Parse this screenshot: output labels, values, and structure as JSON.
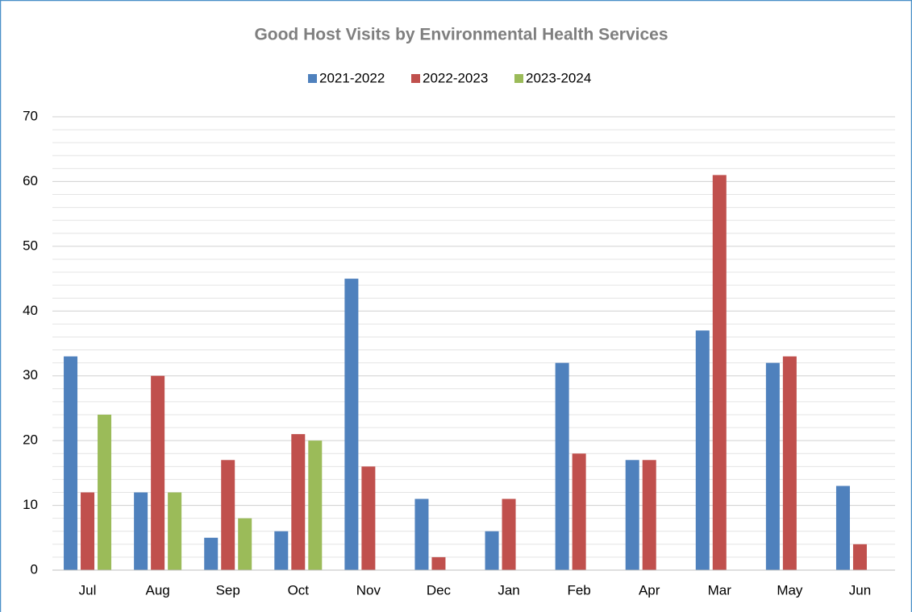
{
  "chart_data": {
    "type": "bar",
    "title": "Good Host Visits by Environmental Health Services",
    "categories": [
      "Jul",
      "Aug",
      "Sep",
      "Oct",
      "Nov",
      "Dec",
      "Jan",
      "Feb",
      "Apr",
      "Mar",
      "May",
      "Jun"
    ],
    "series": [
      {
        "name": "2021-2022",
        "color": "#4f81bd",
        "values": [
          33,
          12,
          5,
          6,
          45,
          11,
          6,
          32,
          17,
          37,
          32,
          13
        ]
      },
      {
        "name": "2022-2023",
        "color": "#c0504d",
        "values": [
          12,
          30,
          17,
          21,
          16,
          2,
          11,
          18,
          17,
          61,
          33,
          4
        ]
      },
      {
        "name": "2023-2024",
        "color": "#9bbb59",
        "values": [
          24,
          12,
          8,
          20,
          null,
          null,
          null,
          null,
          null,
          null,
          null,
          null
        ]
      }
    ],
    "ylim": [
      0,
      70
    ],
    "yticks": [
      0,
      10,
      20,
      30,
      40,
      50,
      60,
      70
    ],
    "minor_yticks": [
      2,
      4,
      6,
      8,
      12,
      14,
      16,
      18,
      22,
      24,
      26,
      28,
      32,
      34,
      36,
      38,
      42,
      44,
      46,
      48,
      52,
      54,
      56,
      58,
      62,
      64,
      66,
      68
    ],
    "grid": true,
    "legend": "top"
  }
}
